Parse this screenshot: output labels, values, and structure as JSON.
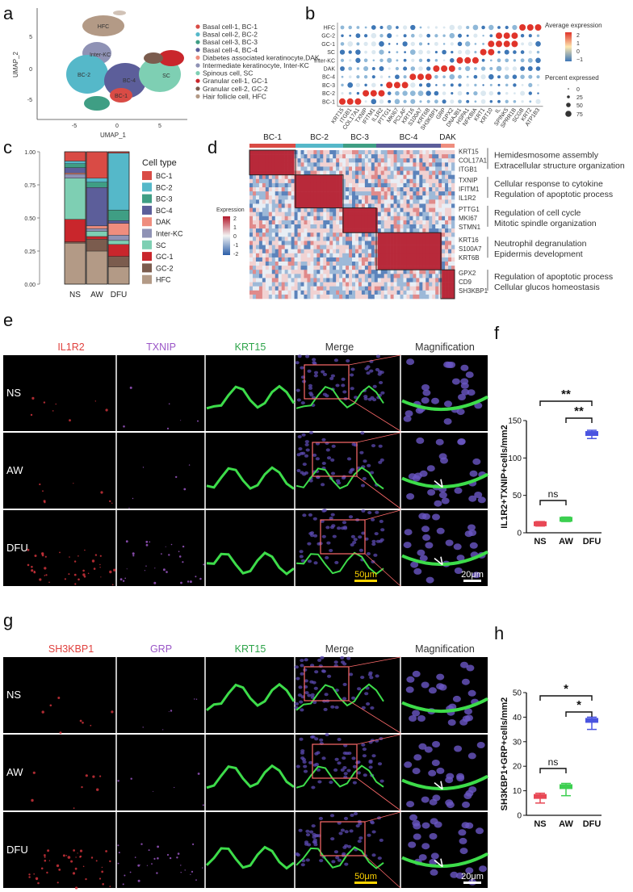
{
  "panels": {
    "a": "a",
    "b": "b",
    "c": "c",
    "d": "d",
    "e": "e",
    "f": "f",
    "g": "g",
    "h": "h"
  },
  "colors": {
    "BC1": "#d94b45",
    "BC2": "#55b8c9",
    "BC3": "#3f9e84",
    "BC4": "#5c5e9a",
    "DAK": "#ef8d7e",
    "InterKC": "#8f92b5",
    "SC": "#7ecfb3",
    "GC1": "#c9262c",
    "GC2": "#7b5c4e",
    "HFC": "#b39a86",
    "NS": "#e84855",
    "AW": "#3ccf50",
    "DFU": "#4a54e0"
  },
  "umap": {
    "xlabel": "UMAP_1",
    "ylabel": "UMAP_2",
    "xticks": [
      "-5",
      "0",
      "5"
    ],
    "yticks": [
      "5",
      "0",
      "-5"
    ],
    "cluster_labels": [
      "HFC",
      "Inter-KC",
      "BC-2",
      "BC-4",
      "SC",
      "BC-1"
    ],
    "legend": [
      "Basal cell-1, BC-1",
      "Basal cell-2, BC-2",
      "Basal cell-3, BC-3",
      "Basal cell-4, BC-4",
      "Diabetes associated keratinocyte,DAK",
      "Intermediate keratinocyte, Inter-KC",
      "Spinous cell, SC",
      "Granular cell-1, GC-1",
      "Granular cell-2, GC-2",
      "Hair follicle cell, HFC"
    ]
  },
  "dotplot": {
    "rows": [
      "HFC",
      "GC-2",
      "GC-1",
      "SC",
      "Inter-KC",
      "DAK",
      "BC-4",
      "BC-3",
      "BC-2",
      "BC-1"
    ],
    "genes": [
      "KRT15",
      "ITGB1",
      "COL17A1",
      "TXNIP",
      "IFITM1",
      "IL1R2",
      "PTTG1",
      "MKI67",
      "PCLAF",
      "KRT16",
      "S100A7",
      "KRT6B",
      "SH3KBP1",
      "GRP",
      "GPX2",
      "DNAJB1",
      "HSPA1",
      "NFKBIA",
      "KRT1",
      "KRT10",
      "IL",
      "SPINK5",
      "SPRR1B",
      "SCGB",
      "KRT2",
      "ATP1B3"
    ],
    "legend_title_color": "Average expression",
    "color_ticks": [
      "2",
      "1",
      "0",
      "−1"
    ],
    "legend_title_size": "Percent expressed",
    "size_ticks": [
      "0",
      "25",
      "50",
      "75"
    ]
  },
  "stacked": {
    "groups": [
      "NS",
      "AW",
      "DFU"
    ],
    "yticks": [
      "1.00",
      "0.75",
      "0.50",
      "0.25",
      "0.00"
    ],
    "legend_title": "Cell type",
    "legend": [
      "BC-1",
      "BC-2",
      "BC-3",
      "BC-4",
      "DAK",
      "Inter-KC",
      "SC",
      "GC-1",
      "GC-2",
      "HFC"
    ]
  },
  "heatmap": {
    "groups": [
      "BC-1",
      "BC-2",
      "BC-3",
      "BC-4",
      "DAK"
    ],
    "legend_title": "Expression",
    "legend_ticks": [
      "2",
      "1",
      "0",
      "-1",
      "-2"
    ],
    "modules": [
      {
        "genes": [
          "KRT15",
          "COL17A1",
          "ITGB1"
        ],
        "terms": [
          "Hemidesmosome assembly",
          "Extracellular structure organization"
        ]
      },
      {
        "genes": [
          "TXNIP",
          "IFITM1",
          "IL1R2"
        ],
        "terms": [
          "Cellular response to cytokine",
          "Regulation of apoptotic process"
        ]
      },
      {
        "genes": [
          "PTTG1",
          "MKI67",
          "STMN1"
        ],
        "terms": [
          "Regulation of cell cycle",
          "Mitotic spindle organization"
        ]
      },
      {
        "genes": [
          "KRT16",
          "S100A7",
          "KRT6B"
        ],
        "terms": [
          "Neutrophil degranulation",
          "Epidermis development"
        ]
      },
      {
        "genes": [
          "GPX2",
          "CD9",
          "SH3KBP1"
        ],
        "terms": [
          "Regulation of apoptotic process",
          "Cellular glucos homeostasis"
        ]
      }
    ]
  },
  "if_e": {
    "channels": [
      "IL1R2",
      "TXNIP",
      "KRT15",
      "Merge",
      "Magnification"
    ],
    "rows": [
      "NS",
      "AW",
      "DFU"
    ],
    "scale_big": "50μm",
    "scale_small": "20μm"
  },
  "if_g": {
    "channels": [
      "SH3KBP1",
      "GRP",
      "KRT15",
      "Merge",
      "Magnification"
    ],
    "rows": [
      "NS",
      "AW",
      "DFU"
    ],
    "scale_big": "50μm",
    "scale_small": "20μm"
  },
  "chart_data": [
    {
      "type": "box",
      "panel": "f",
      "ylabel": "IL1R2+TXNIP+cells/mm2",
      "categories": [
        "NS",
        "AW",
        "DFU"
      ],
      "medians": [
        12,
        18,
        130
      ],
      "whisker_low": [
        9,
        15,
        126
      ],
      "whisker_high": [
        15,
        21,
        137
      ],
      "ylim": [
        0,
        150
      ],
      "yticks": [
        0,
        50,
        100,
        150
      ],
      "significance": [
        {
          "from": "NS",
          "to": "AW",
          "label": "ns"
        },
        {
          "from": "AW",
          "to": "DFU",
          "label": "**"
        },
        {
          "from": "NS",
          "to": "DFU",
          "label": "**"
        }
      ]
    },
    {
      "type": "box",
      "panel": "h",
      "ylabel": "SH3KBP1+GRP+cells/mm2",
      "categories": [
        "NS",
        "AW",
        "DFU"
      ],
      "medians": [
        6.5,
        11,
        36
      ],
      "whisker_low": [
        5,
        8,
        35
      ],
      "whisker_high": [
        9,
        13,
        40
      ],
      "ylim": [
        0,
        50
      ],
      "yticks": [
        0,
        10,
        20,
        30,
        40,
        50
      ],
      "significance": [
        {
          "from": "NS",
          "to": "AW",
          "label": "ns"
        },
        {
          "from": "AW",
          "to": "DFU",
          "label": "*"
        },
        {
          "from": "NS",
          "to": "DFU",
          "label": "*"
        }
      ]
    }
  ]
}
